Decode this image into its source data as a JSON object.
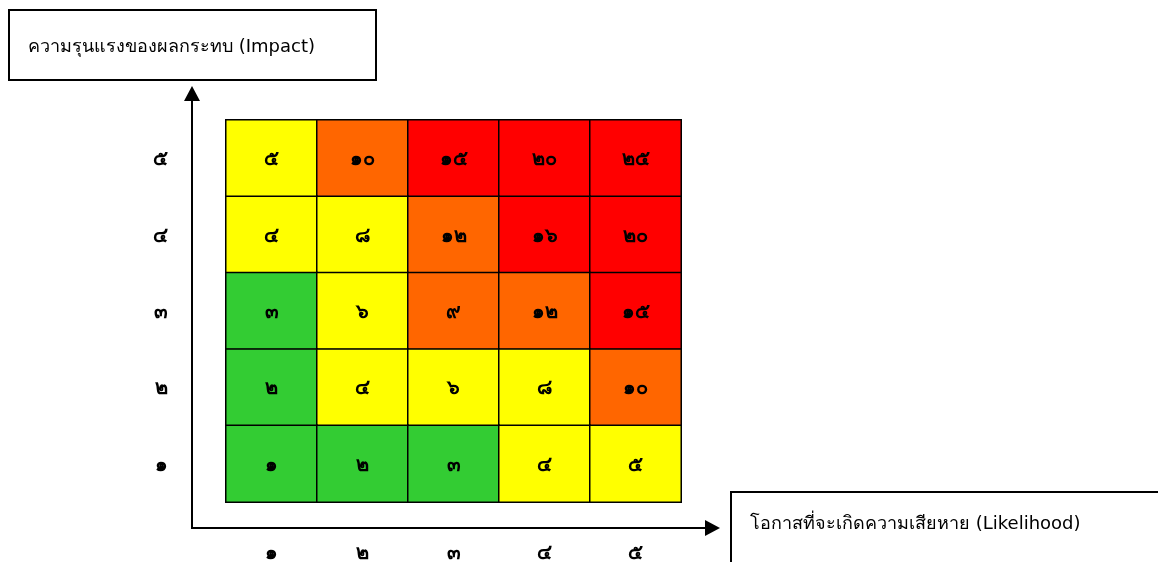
{
  "chart_data": {
    "type": "heatmap",
    "xlabel": "โอกาสที่จะเกิดความเสียหาย (Likelihood)",
    "ylabel": "ความรุนแรงของผลกระทบ (Impact)",
    "categories": [
      "๑",
      "๒",
      "๓",
      "๔",
      "๕"
    ],
    "y_categories": [
      "๕",
      "๔",
      "๓",
      "๒",
      "๑"
    ],
    "cells": [
      [
        5,
        10,
        15,
        20,
        25
      ],
      [
        4,
        8,
        12,
        16,
        20
      ],
      [
        3,
        6,
        9,
        12,
        15
      ],
      [
        2,
        4,
        6,
        8,
        10
      ],
      [
        1,
        2,
        3,
        4,
        5
      ]
    ],
    "cell_labels": [
      [
        "๕",
        "๑๐",
        "๑๕",
        "๒๐",
        "๒๕"
      ],
      [
        "๔",
        "๘",
        "๑๒",
        "๑๖",
        "๒๐"
      ],
      [
        "๓",
        "๖",
        "๙",
        "๑๒",
        "๑๕"
      ],
      [
        "๒",
        "๔",
        "๖",
        "๘",
        "๑๐"
      ],
      [
        "๑",
        "๒",
        "๓",
        "๔",
        "๕"
      ]
    ],
    "colors": [
      [
        "#ffff00",
        "#ff6600",
        "#ff0000",
        "#ff0000",
        "#ff0000"
      ],
      [
        "#ffff00",
        "#ffff00",
        "#ff6600",
        "#ff0000",
        "#ff0000"
      ],
      [
        "#33cc33",
        "#ffff00",
        "#ff6600",
        "#ff6600",
        "#ff0000"
      ],
      [
        "#33cc33",
        "#ffff00",
        "#ffff00",
        "#ffff00",
        "#ff6600"
      ],
      [
        "#33cc33",
        "#33cc33",
        "#33cc33",
        "#ffff00",
        "#ffff00"
      ]
    ]
  }
}
